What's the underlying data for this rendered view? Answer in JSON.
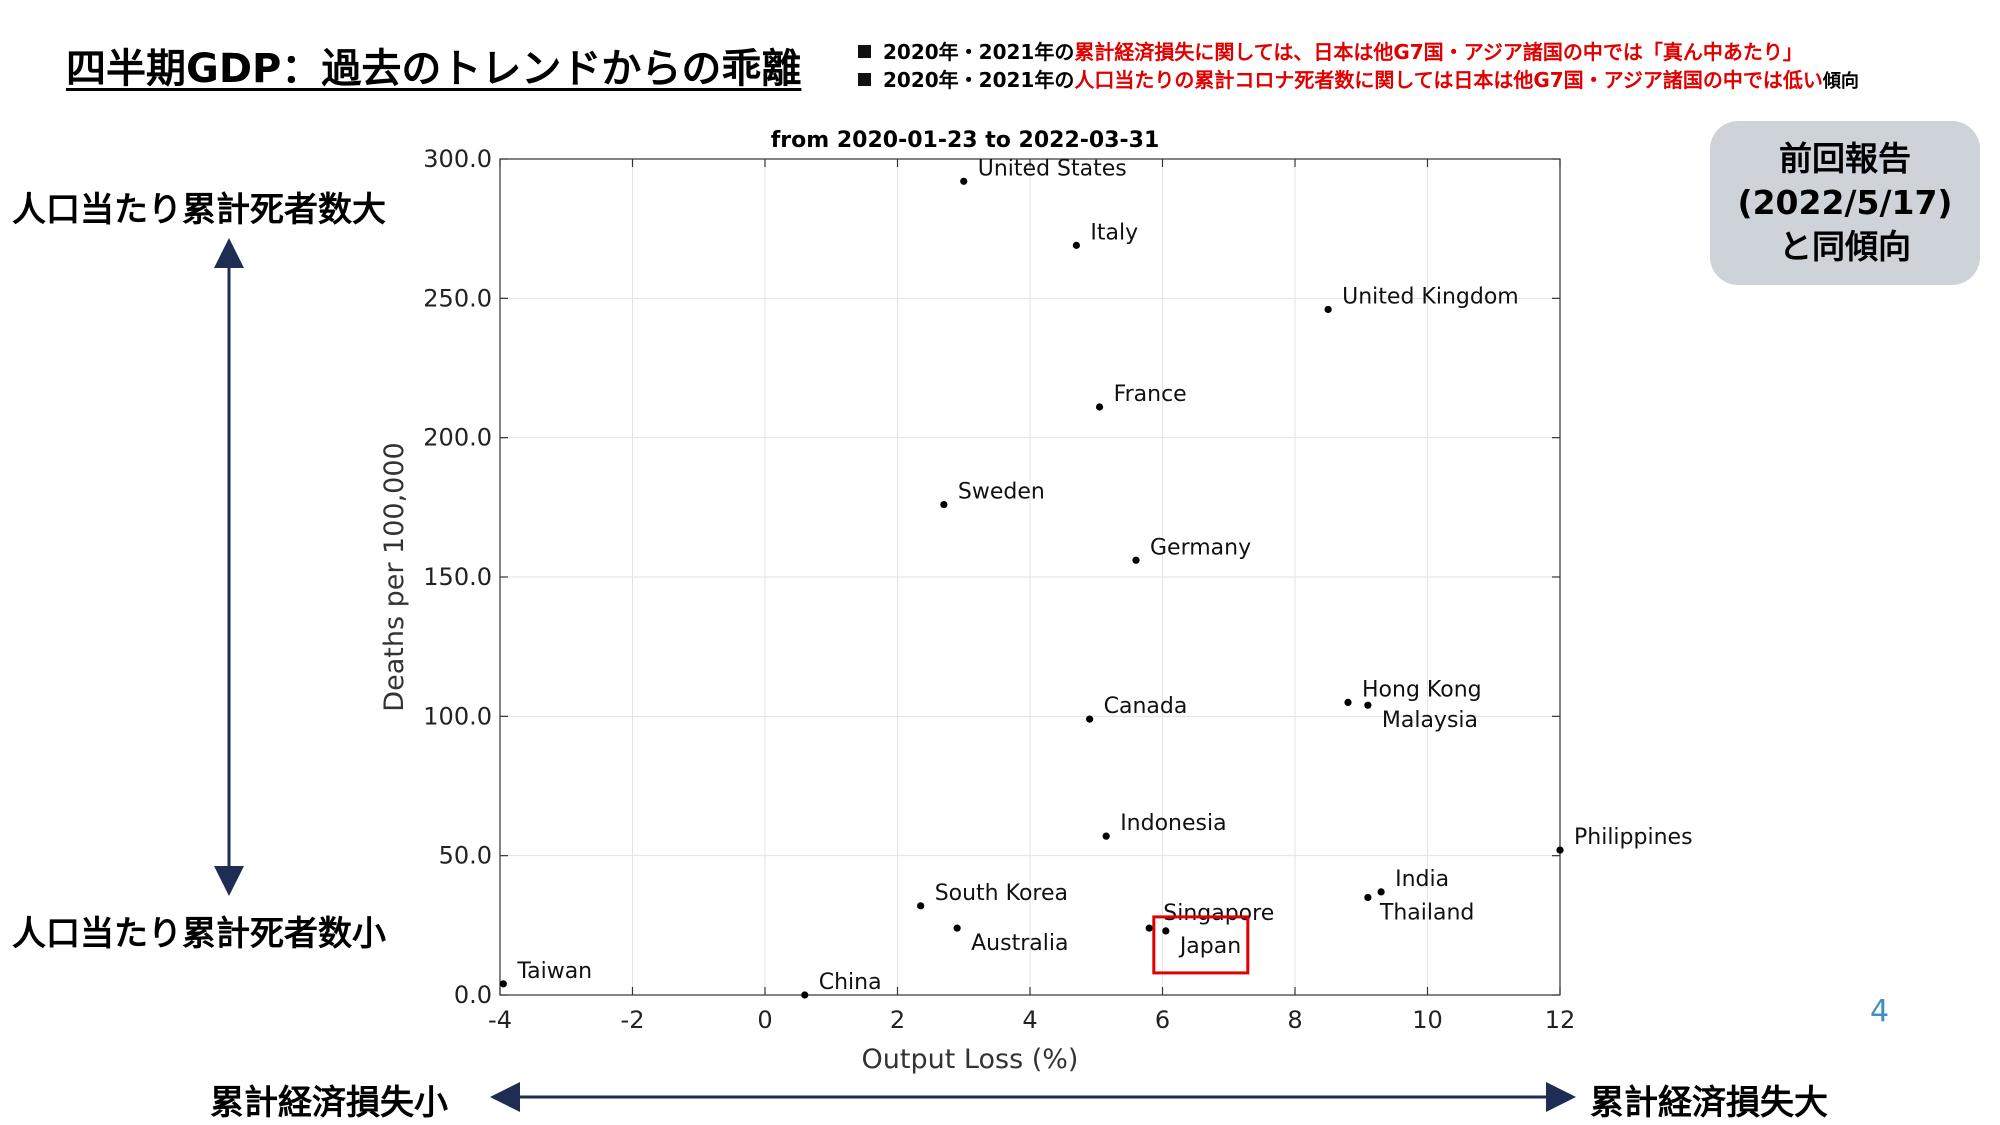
{
  "slide": {
    "title": "四半期GDP：過去のトレンドからの乖離",
    "notes": [
      {
        "prefix": "2020年・2021年の",
        "highlight": "累計経済損失に関しては、日本は他G7国・アジア諸国の中では「真ん中あたり」",
        "suffix": ""
      },
      {
        "prefix": "2020年・2021年の",
        "highlight": "人口当たりの累計コロナ死者数に関しては日本は他G7国・アジア諸国の中では低い",
        "suffix": "傾向"
      }
    ],
    "report_box": [
      "前回報告",
      "(2022/5/17)",
      "と同傾向"
    ],
    "y_high_label": "人口当たり累計死者数大",
    "y_low_label": "人口当たり累計死者数小",
    "x_low_label": "累計経済損失小",
    "x_high_label": "累計経済損失大",
    "page_number": "4",
    "colors": {
      "note_highlight": "#e00000",
      "arrow": "#1f2d55",
      "highlight_box": "#e00000",
      "report_box_bg": "#cdd3d8",
      "page_number": "#3d8fc4"
    }
  },
  "chart_data": {
    "type": "scatter",
    "title": "from 2020-01-23 to 2022-03-31",
    "xlabel": "Output Loss (%)",
    "ylabel": "Deaths per 100,000",
    "xlim": [
      -4,
      12
    ],
    "ylim": [
      0,
      300
    ],
    "xticks": [
      "-4",
      "-2",
      "0",
      "2",
      "4",
      "6",
      "8",
      "10",
      "12"
    ],
    "yticks": [
      "0.0",
      "50.0",
      "100.0",
      "150.0",
      "200.0",
      "250.0",
      "300.0"
    ],
    "grid": true,
    "highlighted": "Japan",
    "points": [
      {
        "label": "United States",
        "x": 3.0,
        "y": 292
      },
      {
        "label": "Italy",
        "x": 4.7,
        "y": 269
      },
      {
        "label": "United Kingdom",
        "x": 8.5,
        "y": 246
      },
      {
        "label": "France",
        "x": 5.05,
        "y": 211
      },
      {
        "label": "Sweden",
        "x": 2.7,
        "y": 176
      },
      {
        "label": "Germany",
        "x": 5.6,
        "y": 156
      },
      {
        "label": "Canada",
        "x": 4.9,
        "y": 99
      },
      {
        "label": "Hong Kong",
        "x": 8.8,
        "y": 105
      },
      {
        "label": "Malaysia",
        "x": 9.1,
        "y": 104
      },
      {
        "label": "Indonesia",
        "x": 5.15,
        "y": 57
      },
      {
        "label": "Philippines",
        "x": 12.0,
        "y": 52
      },
      {
        "label": "India",
        "x": 9.3,
        "y": 37
      },
      {
        "label": "Thailand",
        "x": 9.1,
        "y": 35
      },
      {
        "label": "South Korea",
        "x": 2.35,
        "y": 32
      },
      {
        "label": "Singapore",
        "x": 5.8,
        "y": 24
      },
      {
        "label": "Japan",
        "x": 6.05,
        "y": 23
      },
      {
        "label": "Australia",
        "x": 2.9,
        "y": 24
      },
      {
        "label": "Taiwan",
        "x": -3.95,
        "y": 4
      },
      {
        "label": "China",
        "x": 0.6,
        "y": 0
      }
    ]
  }
}
